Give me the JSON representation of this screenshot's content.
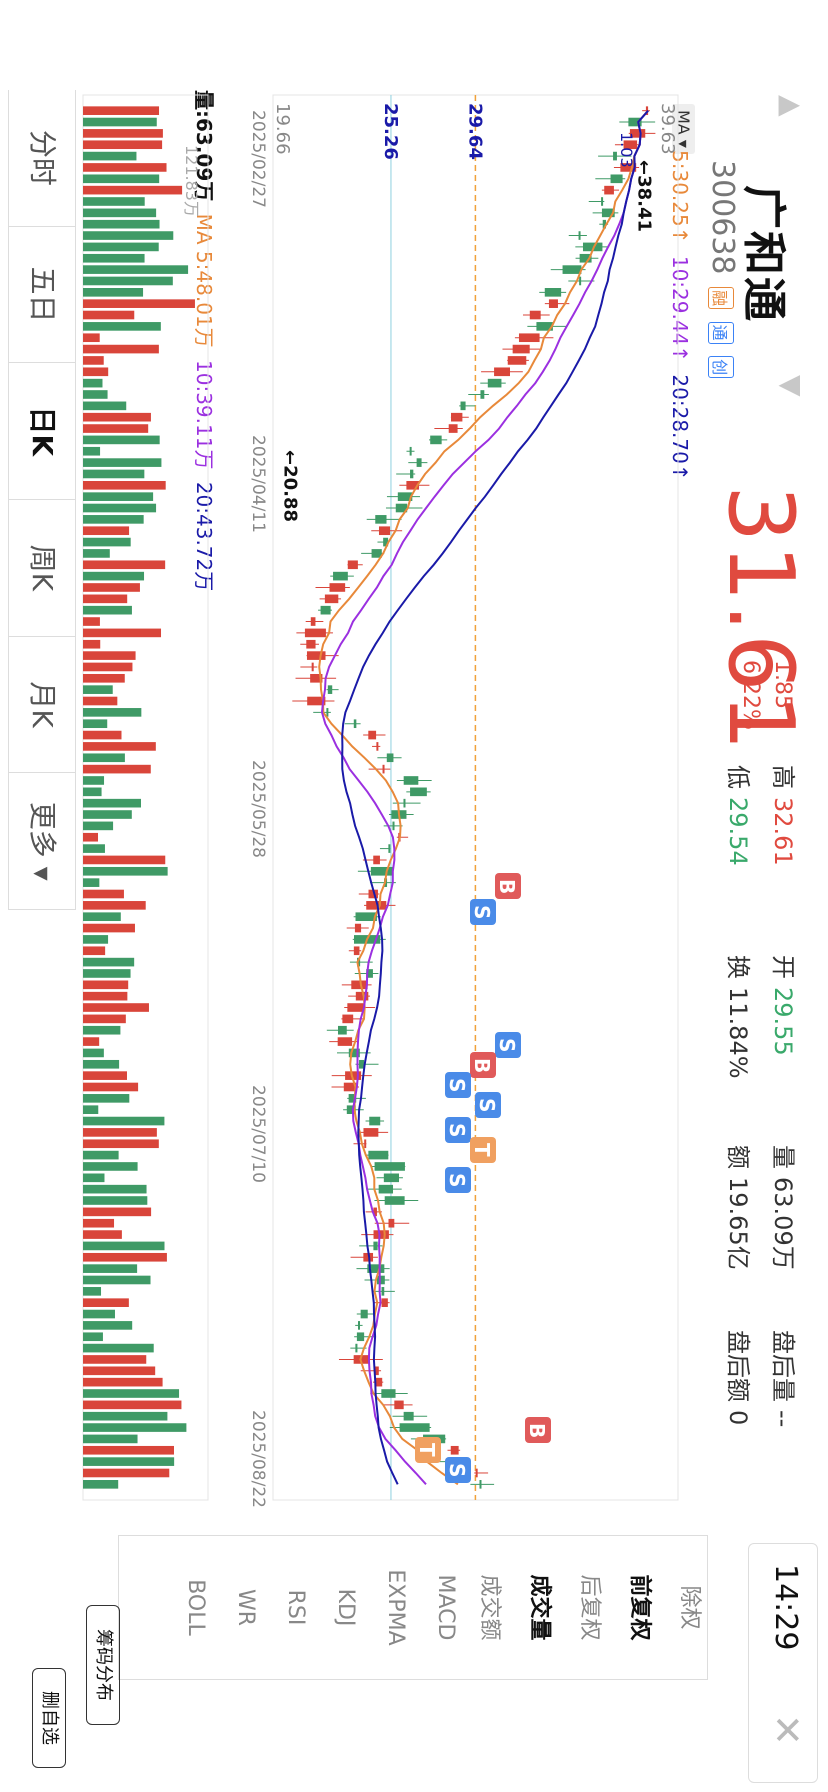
{
  "header": {
    "name": "广和通",
    "code": "300638",
    "tags": [
      "融",
      "通",
      "创"
    ],
    "price": "31.61",
    "change": "1.85",
    "change_pct": "6.22%",
    "time": "14:29"
  },
  "stats": {
    "high_label": "高",
    "high": "32.61",
    "low_label": "低",
    "low": "29.54",
    "open_label": "开",
    "open": "29.55",
    "turnover_label": "换",
    "turnover": "11.84%",
    "volume_label": "量",
    "volume": "63.09万",
    "amount_label": "额",
    "amount": "19.65亿",
    "after_volume_label": "盘后量",
    "after_volume": "--",
    "after_amount_label": "盘后额",
    "after_amount": "0"
  },
  "legend": {
    "ma_selector": "MA ▾",
    "price_ma": [
      "5:30.25↑",
      "10:29.44↑",
      "20:28.70↑"
    ],
    "volume": "量:63.09万",
    "volume_ma": [
      "MA 5:48.01万",
      "10:39.11万",
      "20:43.72万"
    ]
  },
  "tabs": [
    "分时",
    "五日",
    "日K",
    "周K",
    "月K",
    "更多 ▾"
  ],
  "indicators": [
    "除权",
    "前复权",
    "后复权",
    "成交量",
    "成交额",
    "MACD",
    "EXPMA",
    "KDJ",
    "RSI",
    "WR",
    "BOLL"
  ],
  "buttons": {
    "chip_dist": "筹码分布",
    "remove_watch": "删自选"
  },
  "chart_data": {
    "type": "candlestick",
    "y_axis_labels": [
      "39.63",
      "29.64",
      "25.26",
      "19.66"
    ],
    "x_axis_labels": [
      "2025/02/27",
      "2025/04/11",
      "2025/05/28",
      "2025/07/10",
      "2025/08/22"
    ],
    "annotations": [
      "←38.41",
      "←20.88",
      "1.03",
      "121.83万"
    ],
    "reference_price": 29.64,
    "ylim": [
      19.66,
      39.63
    ],
    "ma_colors": {
      "ma5": "#e8893a",
      "ma10": "#9b30e0",
      "ma20": "#1a1aa8"
    },
    "up_color": "#d9453a",
    "down_color": "#3f9a66",
    "trade_marks": [
      "B",
      "S",
      "S",
      "B",
      "S",
      "S",
      "S",
      "T",
      "S",
      "B",
      "T",
      "S"
    ]
  }
}
